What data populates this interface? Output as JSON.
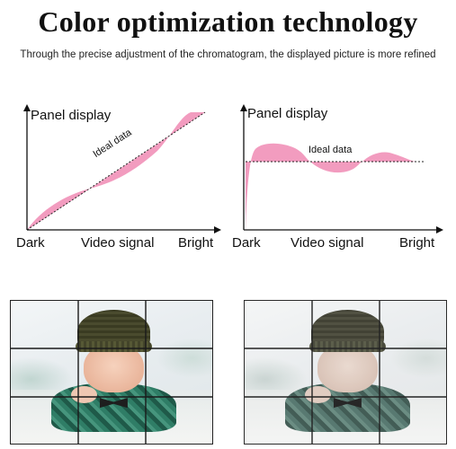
{
  "title": "Color optimization technology",
  "subtitle": "Through the precise adjustment of the chromatogram, the displayed picture is more refined",
  "graphs": [
    {
      "y_label": "Panel display",
      "x_left": "Dark",
      "x_middle": "Video signal",
      "x_right": "Bright",
      "ideal_label": "Ideal data"
    },
    {
      "y_label": "Panel display",
      "x_left": "Dark",
      "x_middle": "Video signal",
      "x_right": "Bright",
      "ideal_label": "Ideal data"
    }
  ],
  "colors": {
    "deviation_fill": "#f29cbf",
    "grid_line": "#1a1a1a",
    "axis": "#111111"
  },
  "photos": [
    {
      "subject": "baby-in-knit-hat",
      "grid": "3x3"
    },
    {
      "subject": "baby-in-knit-hat",
      "grid": "3x3"
    }
  ]
}
